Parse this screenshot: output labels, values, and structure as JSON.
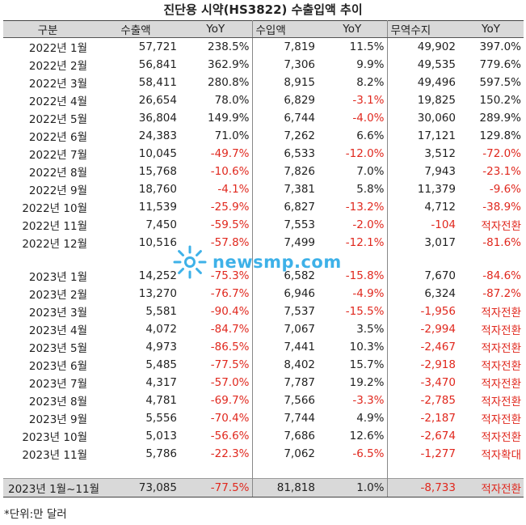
{
  "title": "진단용 시약(HS3822) 수출입액 추이",
  "headers": [
    "구분",
    "수출액",
    "YoY",
    "수입액",
    "YoY",
    "무역수지",
    "YoY"
  ],
  "rows_2022": [
    [
      "2022년 1월",
      "57,721",
      "238.5%",
      "7,819",
      "11.5%",
      "49,902",
      "397.0%"
    ],
    [
      "2022년 2월",
      "56,841",
      "362.9%",
      "7,306",
      "9.9%",
      "49,535",
      "779.6%"
    ],
    [
      "2022년 3월",
      "58,411",
      "280.8%",
      "8,915",
      "8.2%",
      "49,496",
      "597.5%"
    ],
    [
      "2022년 4월",
      "26,654",
      "78.0%",
      "6,829",
      "-3.1%",
      "19,825",
      "150.2%"
    ],
    [
      "2022년 5월",
      "36,804",
      "149.9%",
      "6,744",
      "-4.0%",
      "30,060",
      "289.9%"
    ],
    [
      "2022년 6월",
      "24,383",
      "71.0%",
      "7,262",
      "6.6%",
      "17,121",
      "129.8%"
    ],
    [
      "2022년 7월",
      "10,045",
      "-49.7%",
      "6,533",
      "-12.0%",
      "3,512",
      "-72.0%"
    ],
    [
      "2022년 8월",
      "15,768",
      "-10.6%",
      "7,826",
      "7.0%",
      "7,943",
      "-23.1%"
    ],
    [
      "2022년 9월",
      "18,760",
      "-4.1%",
      "7,381",
      "5.8%",
      "11,379",
      "-9.6%"
    ],
    [
      "2022년 10월",
      "11,539",
      "-25.9%",
      "6,827",
      "-13.2%",
      "4,712",
      "-38.9%"
    ],
    [
      "2022년 11월",
      "7,450",
      "-59.5%",
      "7,553",
      "-2.0%",
      "-104",
      "적자전환"
    ],
    [
      "2022년 12월",
      "10,516",
      "-57.8%",
      "7,499",
      "-12.1%",
      "3,017",
      "-81.6%"
    ]
  ],
  "rows_2023": [
    [
      "2023년 1월",
      "14,252",
      "-75.3%",
      "6,582",
      "-15.8%",
      "7,670",
      "-84.6%"
    ],
    [
      "2023년 2월",
      "13,270",
      "-76.7%",
      "6,946",
      "-4.9%",
      "6,324",
      "-87.2%"
    ],
    [
      "2023년 3월",
      "5,581",
      "-90.4%",
      "7,537",
      "-15.5%",
      "-1,956",
      "적자전환"
    ],
    [
      "2023년 4월",
      "4,072",
      "-84.7%",
      "7,067",
      "3.5%",
      "-2,994",
      "적자전환"
    ],
    [
      "2023년 5월",
      "4,973",
      "-86.5%",
      "7,441",
      "10.3%",
      "-2,467",
      "적자전환"
    ],
    [
      "2023년 6월",
      "5,485",
      "-77.5%",
      "8,402",
      "15.7%",
      "-2,918",
      "적자전환"
    ],
    [
      "2023년 7월",
      "4,317",
      "-57.0%",
      "7,787",
      "19.2%",
      "-3,470",
      "적자전환"
    ],
    [
      "2023년 8월",
      "4,781",
      "-69.7%",
      "7,566",
      "-3.3%",
      "-2,785",
      "적자전환"
    ],
    [
      "2023년 9월",
      "5,556",
      "-70.4%",
      "7,744",
      "4.9%",
      "-2,187",
      "적자전환"
    ],
    [
      "2023년 10월",
      "5,013",
      "-56.6%",
      "7,686",
      "12.6%",
      "-2,674",
      "적자전환"
    ],
    [
      "2023년 11월",
      "5,786",
      "-22.3%",
      "7,062",
      "-6.5%",
      "-1,277",
      "적자확대"
    ]
  ],
  "total_row": [
    "2023년 1월~11월",
    "73,085",
    "-77.5%",
    "81,818",
    "1.0%",
    "-8,733",
    "적자전환"
  ],
  "footnote": "*단위:만 달러",
  "watermark": "newsmp.com",
  "colors": {
    "negative": "#e0281e",
    "header_bg": "#d9d9d9",
    "watermark": "#2aa9e6"
  }
}
